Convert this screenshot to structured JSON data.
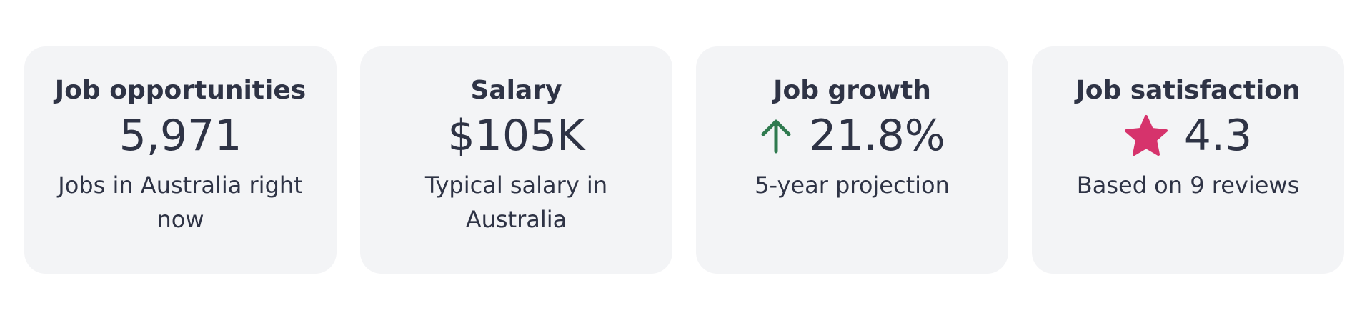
{
  "cards": [
    {
      "title": "Job opportunities",
      "value": "5,971",
      "description": "Jobs in Australia right now"
    },
    {
      "title": "Salary",
      "value": "$105K",
      "description": "Typical salary in Australia"
    },
    {
      "title": "Job growth",
      "value": "21.8%",
      "description": "5-year projection"
    },
    {
      "title": "Job satisfaction",
      "value": "4.3",
      "description": "Based on 9 reviews"
    }
  ]
}
